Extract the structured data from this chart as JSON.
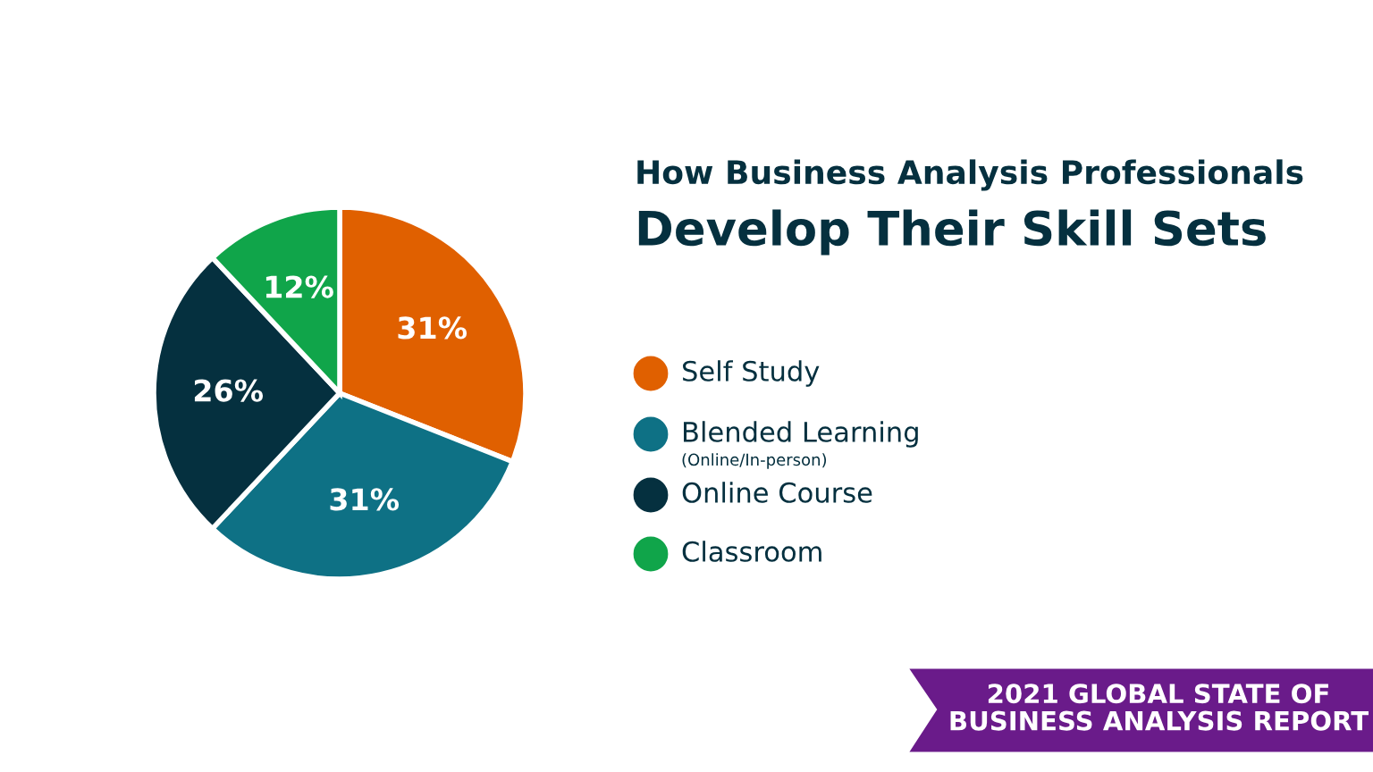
{
  "chart_data": {
    "type": "pie",
    "title": "How Business Analysis Professionals",
    "subtitle": "Develop Their Skill Sets",
    "categories": [
      "Self Study",
      "Blended Learning\n(Online/In-person)",
      "Online Course",
      "Classroom"
    ],
    "values": [
      31,
      31,
      26,
      12
    ],
    "colors": [
      "#e06000",
      "#0e7185",
      "#05303f",
      "#10a54a"
    ],
    "value_labels": [
      "31%",
      "31%",
      "26%",
      "12%"
    ],
    "legend": "right",
    "annotations": [
      "2021 GLOBAL STATE OF\nBUSINESS ANALYSIS REPORT"
    ]
  }
}
